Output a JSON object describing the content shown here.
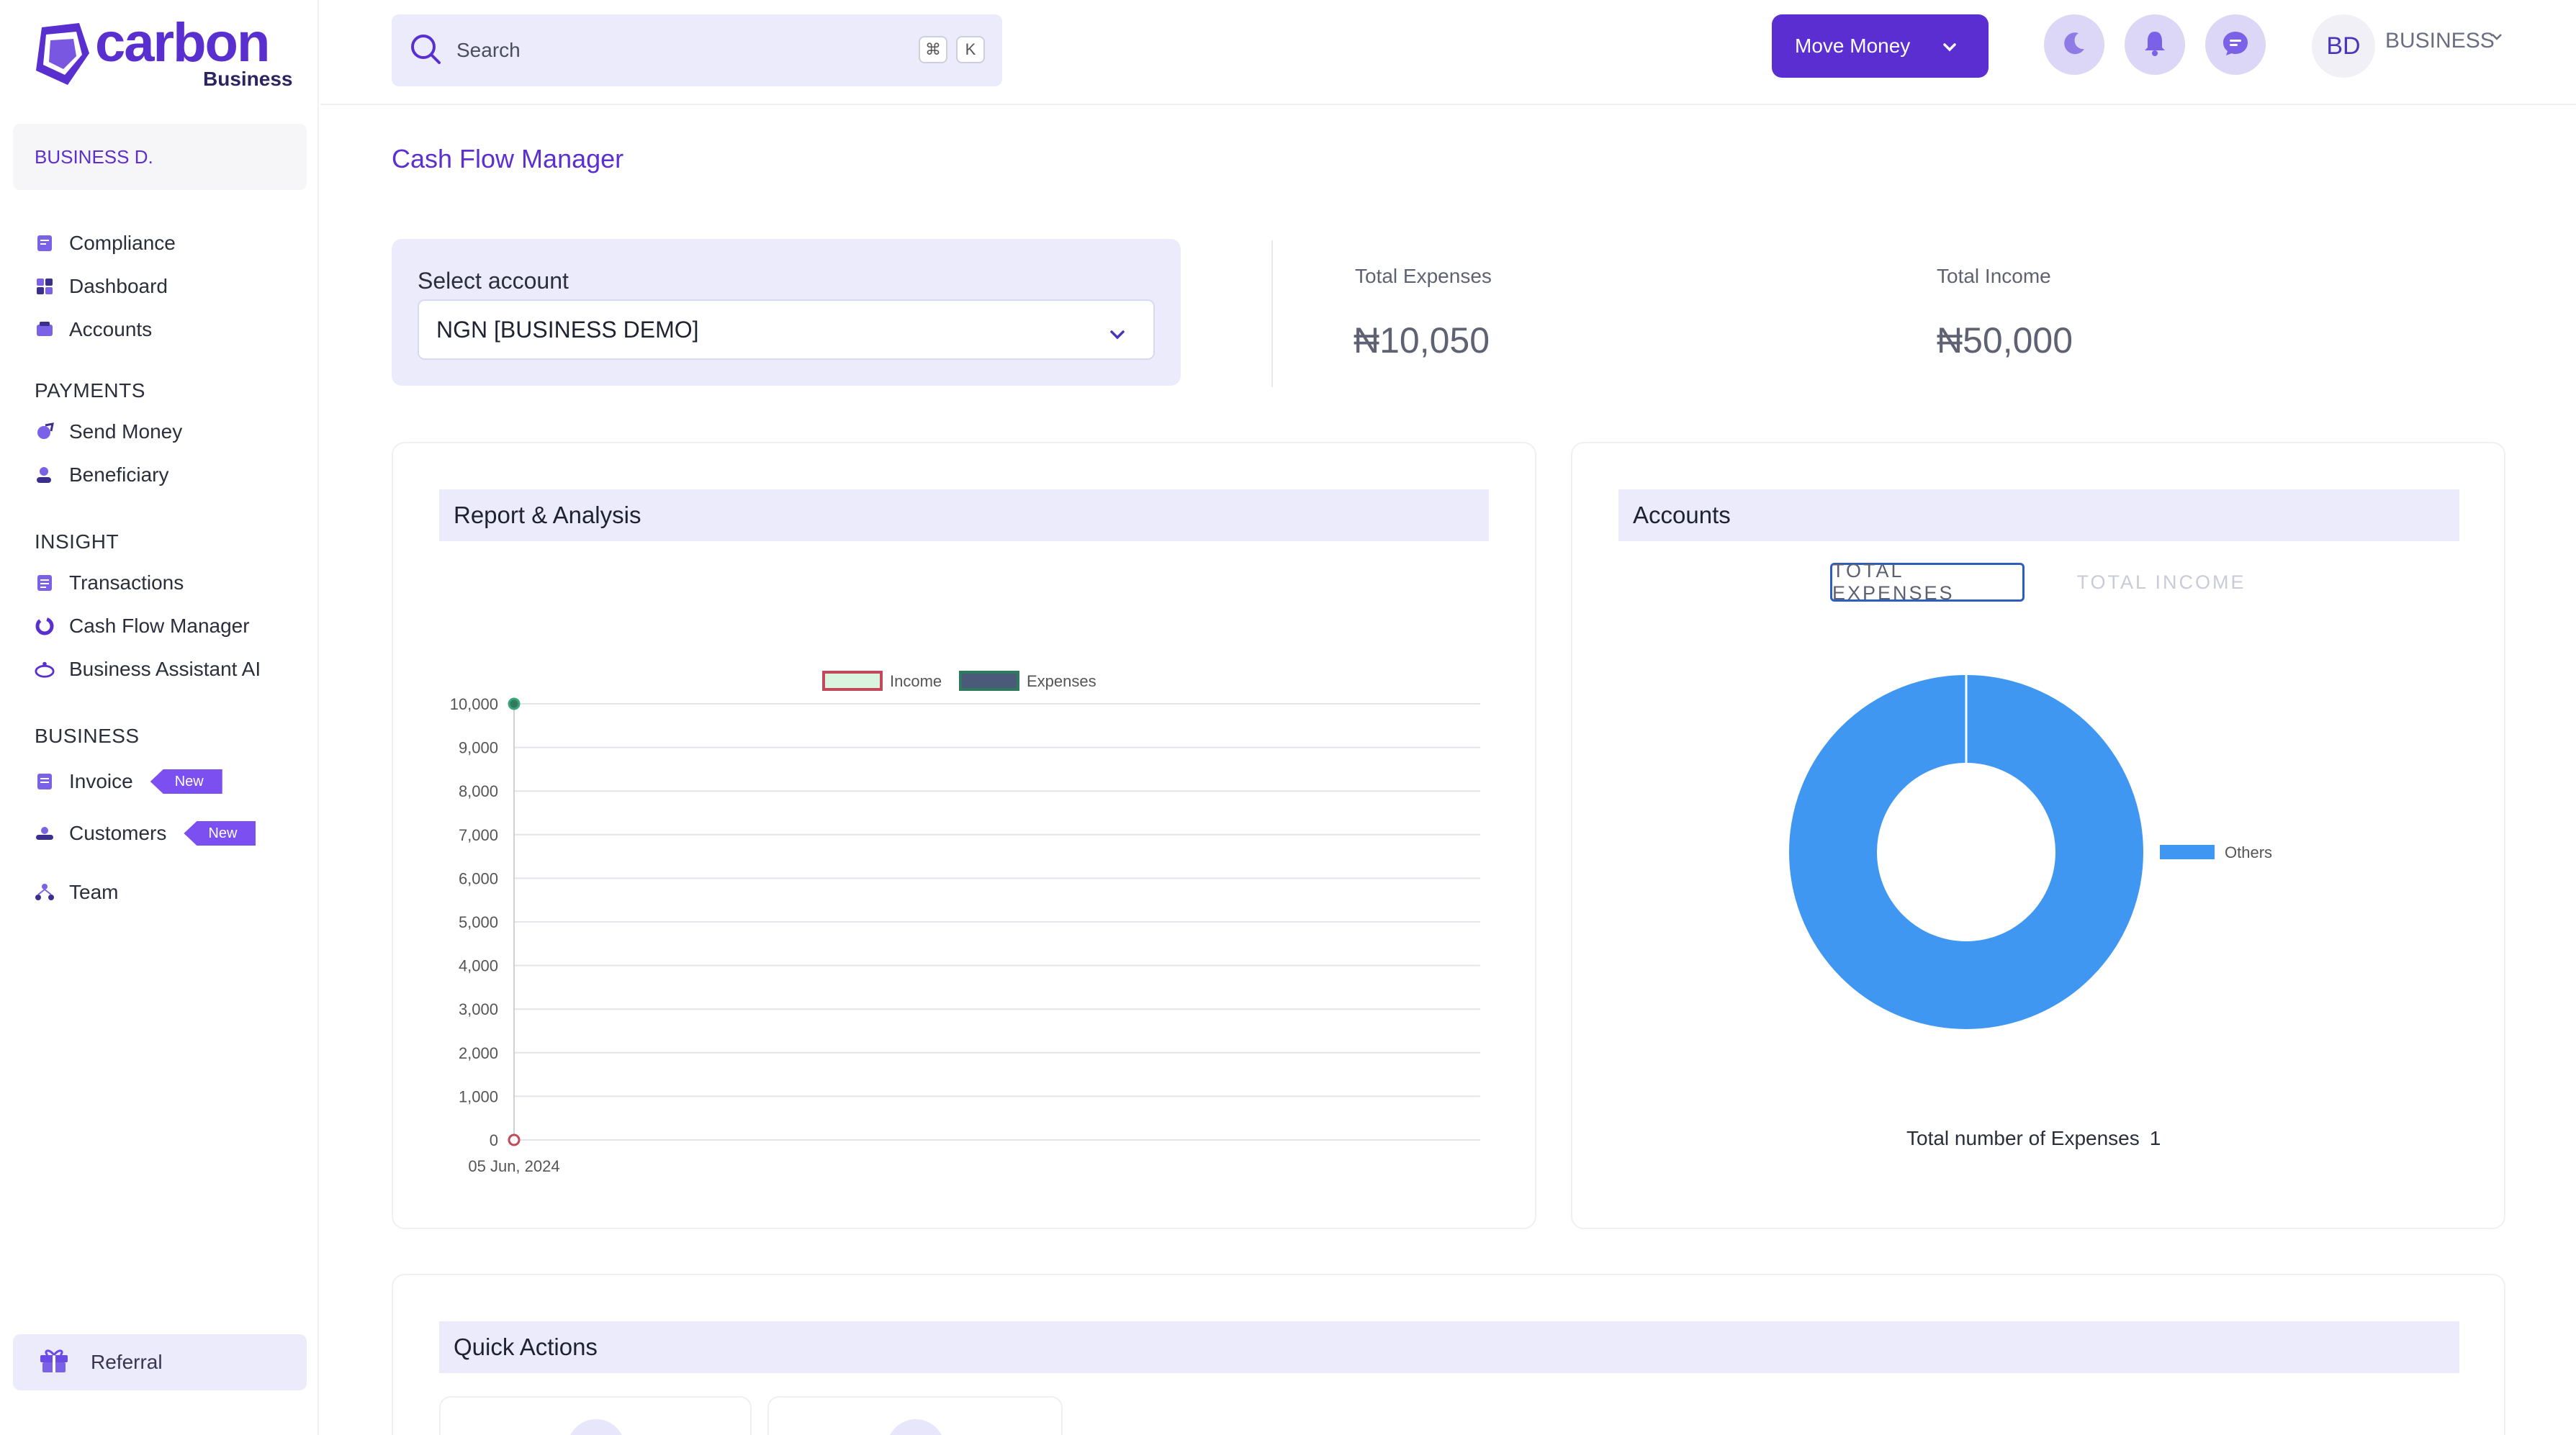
{
  "brand": {
    "name": "carbon",
    "sub": "Business"
  },
  "sidebar": {
    "business_name": "BUSINESS D.",
    "items_top": [
      {
        "label": "Compliance",
        "icon": "compliance-icon"
      },
      {
        "label": "Dashboard",
        "icon": "dashboard-icon"
      },
      {
        "label": "Accounts",
        "icon": "accounts-icon"
      }
    ],
    "sections": {
      "payments": "PAYMENTS",
      "insight": "INSIGHT",
      "business": "BUSINESS"
    },
    "payments": [
      {
        "label": "Send Money",
        "icon": "send-money-icon"
      },
      {
        "label": "Beneficiary",
        "icon": "beneficiary-icon"
      }
    ],
    "insight": [
      {
        "label": "Transactions",
        "icon": "transactions-icon"
      },
      {
        "label": "Cash Flow Manager",
        "icon": "cash-flow-icon"
      },
      {
        "label": "Business Assistant AI",
        "icon": "assistant-ai-icon"
      }
    ],
    "business": [
      {
        "label": "Invoice",
        "icon": "invoice-icon",
        "badge": "New"
      },
      {
        "label": "Customers",
        "icon": "customers-icon",
        "badge": "New"
      },
      {
        "label": "Team",
        "icon": "team-icon"
      }
    ],
    "referral": "Referral"
  },
  "topbar": {
    "search_placeholder": "Search",
    "shortcut_keys": [
      "⌘",
      "K"
    ],
    "move_money": "Move Money",
    "avatar_initials": "BD",
    "account_name": "BUSINESS"
  },
  "page": {
    "title": "Cash Flow Manager"
  },
  "account_select": {
    "label": "Select account",
    "value": "NGN [BUSINESS DEMO]"
  },
  "stats": {
    "expenses_label": "Total Expenses",
    "expenses_value": "₦10,050",
    "income_label": "Total Income",
    "income_value": "₦50,000"
  },
  "report": {
    "title": "Report & Analysis"
  },
  "accounts_panel": {
    "title": "Accounts",
    "tabs": [
      "TOTAL EXPENSES",
      "TOTAL INCOME"
    ],
    "active_tab": "TOTAL EXPENSES",
    "footer_label": "Total number of Expenses",
    "footer_count": "1"
  },
  "quick_actions": {
    "title": "Quick Actions"
  },
  "colors": {
    "brand": "#5b2fd0",
    "accent_lavender": "#ecebfb",
    "donut_blue": "#3f97f2"
  },
  "chart_data": [
    {
      "type": "line",
      "title": "",
      "x": [
        "05 Jun, 2024"
      ],
      "series": [
        {
          "name": "Income",
          "values": [
            0
          ],
          "color": "#c2485c",
          "fill": "#d9f5df"
        },
        {
          "name": "Expenses",
          "values": [
            10000
          ],
          "color": "#2f7a5c",
          "fill": "#4b5a78"
        }
      ],
      "ylim": [
        0,
        10000
      ],
      "yticks": [
        "10,000",
        "9,000",
        "8,000",
        "7,000",
        "6,000",
        "5,000",
        "4,000",
        "3,000",
        "2,000",
        "1,000",
        "0"
      ],
      "legend": "top-center",
      "grid": true
    },
    {
      "type": "pie",
      "variant": "donut",
      "labels": [
        "Others"
      ],
      "values": [
        100
      ],
      "colors": [
        "#3f97f2"
      ],
      "legend": "right"
    }
  ]
}
